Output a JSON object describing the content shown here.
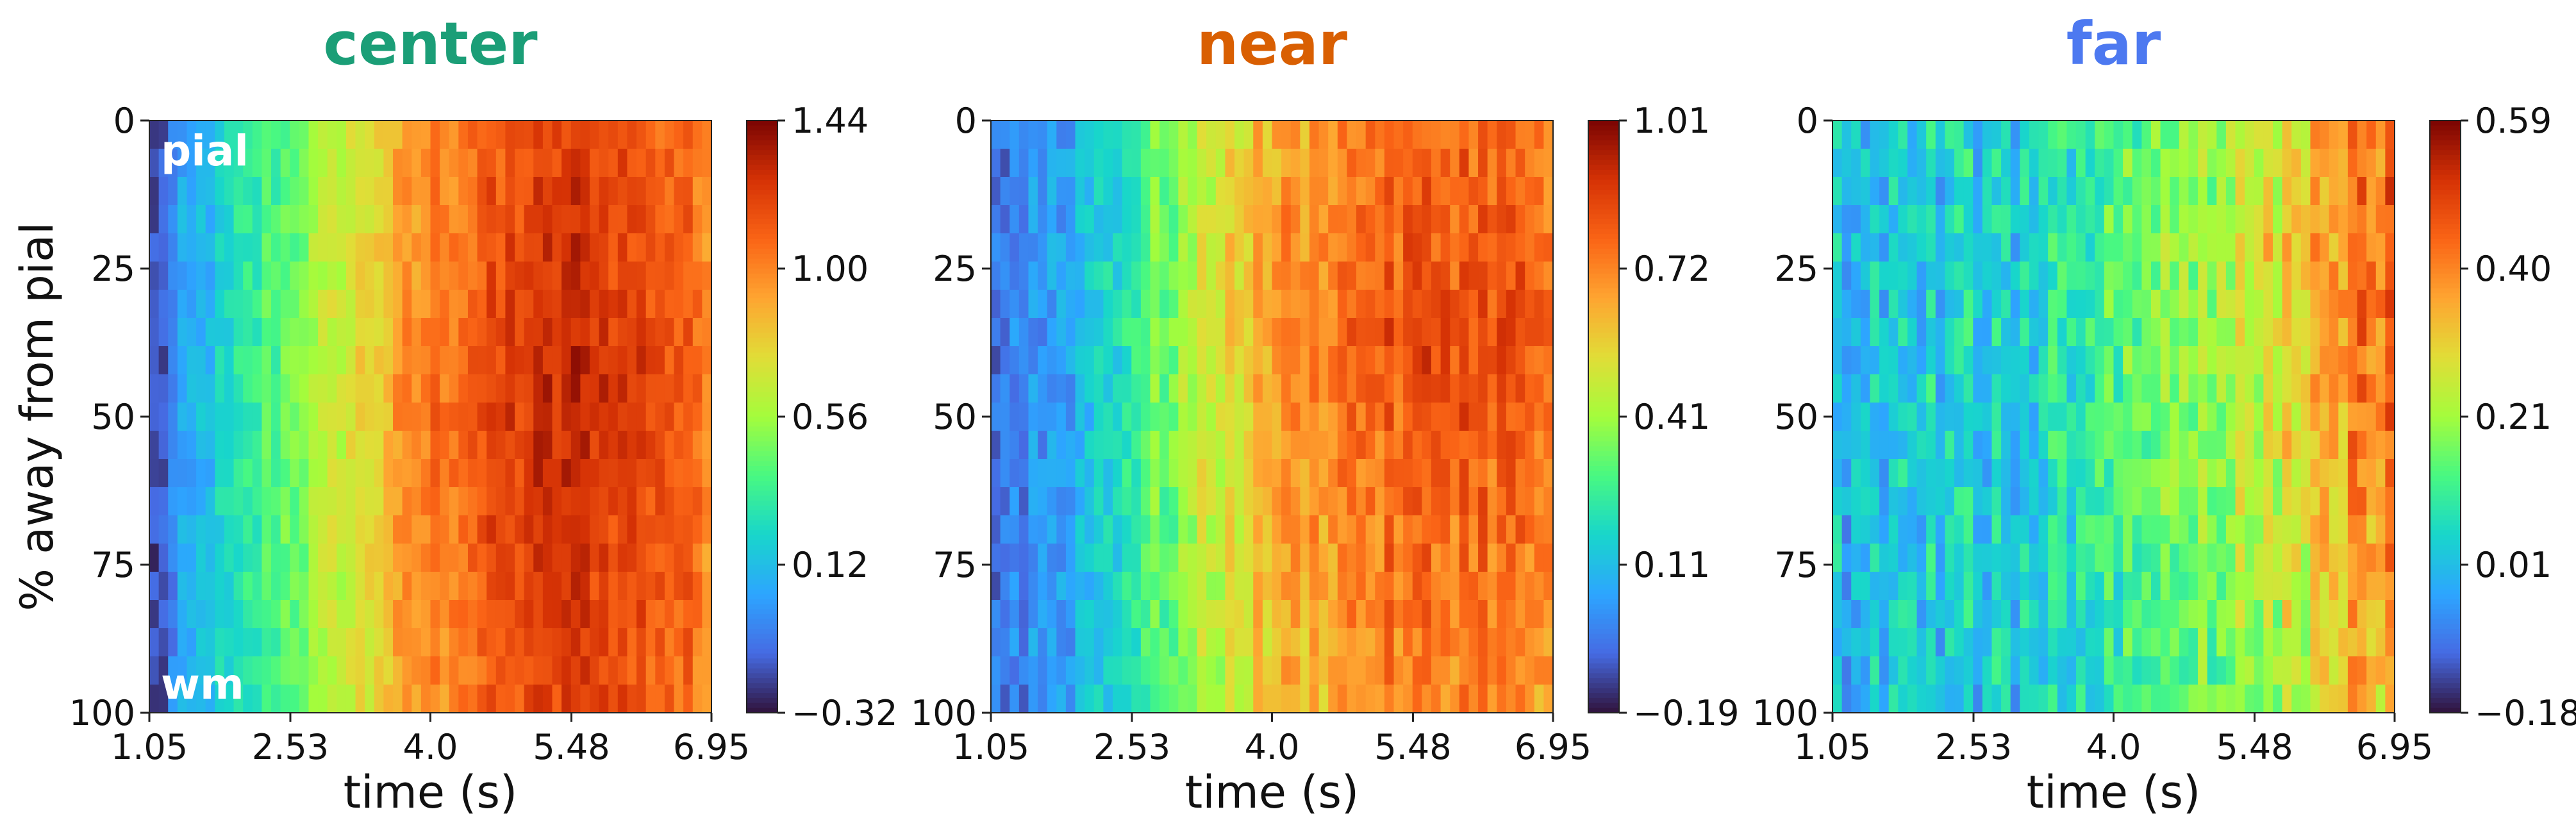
{
  "chart_data": [
    {
      "type": "heatmap",
      "title": "center",
      "title_color": "#1b9e77",
      "xlabel": "time (s)",
      "ylabel": "% away from pial",
      "x_ticks": [
        "1.05",
        "2.53",
        "4.0",
        "5.48",
        "6.95"
      ],
      "y_ticks": [
        "0",
        "25",
        "50",
        "75",
        "100"
      ],
      "xlim": [
        1.05,
        6.95
      ],
      "ylim": [
        0,
        100
      ],
      "colorbar": {
        "min": -0.32,
        "max": 1.44,
        "ticks": [
          "1.44",
          "1.00",
          "0.56",
          "0.12",
          "−0.32"
        ]
      },
      "colormap": "turbo",
      "annotations": {
        "top": "pial",
        "bottom": "wm"
      },
      "n_rows": 21,
      "n_cols": 60,
      "time_profile": [
        [
          1.05,
          -0.28
        ],
        [
          1.4,
          0.0
        ],
        [
          2.2,
          0.35
        ],
        [
          2.9,
          0.62
        ],
        [
          3.5,
          0.85
        ],
        [
          4.0,
          1.05
        ],
        [
          4.5,
          1.15
        ],
        [
          5.0,
          1.25
        ],
        [
          5.48,
          1.3
        ],
        [
          6.0,
          1.25
        ],
        [
          6.5,
          1.18
        ],
        [
          6.95,
          1.05
        ]
      ],
      "depth_peak_pct": 50,
      "depth_falloff": 0.15,
      "noise_amplitude": 0.12
    },
    {
      "type": "heatmap",
      "title": "near",
      "title_color": "#d95f02",
      "xlabel": "time (s)",
      "ylabel": "",
      "x_ticks": [
        "1.05",
        "2.53",
        "4.0",
        "5.48",
        "6.95"
      ],
      "y_ticks": [
        "0",
        "25",
        "50",
        "75",
        "100"
      ],
      "xlim": [
        1.05,
        6.95
      ],
      "ylim": [
        0,
        100
      ],
      "colorbar": {
        "min": -0.19,
        "max": 1.01,
        "ticks": [
          "1.01",
          "0.72",
          "0.41",
          "0.11",
          "−0.19"
        ]
      },
      "colormap": "turbo",
      "annotations": {
        "top": "",
        "bottom": ""
      },
      "n_rows": 21,
      "n_cols": 60,
      "time_profile": [
        [
          1.05,
          -0.05
        ],
        [
          1.8,
          0.05
        ],
        [
          2.5,
          0.25
        ],
        [
          3.0,
          0.4
        ],
        [
          3.5,
          0.55
        ],
        [
          4.0,
          0.68
        ],
        [
          4.5,
          0.75
        ],
        [
          5.0,
          0.8
        ],
        [
          5.48,
          0.82
        ],
        [
          6.0,
          0.84
        ],
        [
          6.5,
          0.82
        ],
        [
          6.95,
          0.75
        ]
      ],
      "depth_peak_pct": 35,
      "depth_falloff": 0.25,
      "noise_amplitude": 0.1
    },
    {
      "type": "heatmap",
      "title": "far",
      "title_color": "#4d79f0",
      "xlabel": "time (s)",
      "ylabel": "",
      "x_ticks": [
        "1.05",
        "2.53",
        "4.0",
        "5.48",
        "6.95"
      ],
      "y_ticks": [
        "0",
        "25",
        "50",
        "75",
        "100"
      ],
      "xlim": [
        1.05,
        6.95
      ],
      "ylim": [
        0,
        100
      ],
      "colorbar": {
        "min": -0.18,
        "max": 0.59,
        "ticks": [
          "0.59",
          "0.40",
          "0.21",
          "0.01",
          "−0.18"
        ]
      },
      "colormap": "turbo",
      "annotations": {
        "top": "",
        "bottom": ""
      },
      "n_rows": 21,
      "n_cols": 60,
      "time_profile": [
        [
          1.05,
          0.0
        ],
        [
          2.0,
          0.03
        ],
        [
          3.0,
          0.04
        ],
        [
          3.8,
          0.12
        ],
        [
          4.5,
          0.18
        ],
        [
          5.0,
          0.22
        ],
        [
          5.5,
          0.27
        ],
        [
          6.0,
          0.33
        ],
        [
          6.5,
          0.42
        ],
        [
          6.95,
          0.45
        ]
      ],
      "depth_peak_pct": 25,
      "depth_falloff": 0.35,
      "noise_amplitude": 0.09
    }
  ]
}
